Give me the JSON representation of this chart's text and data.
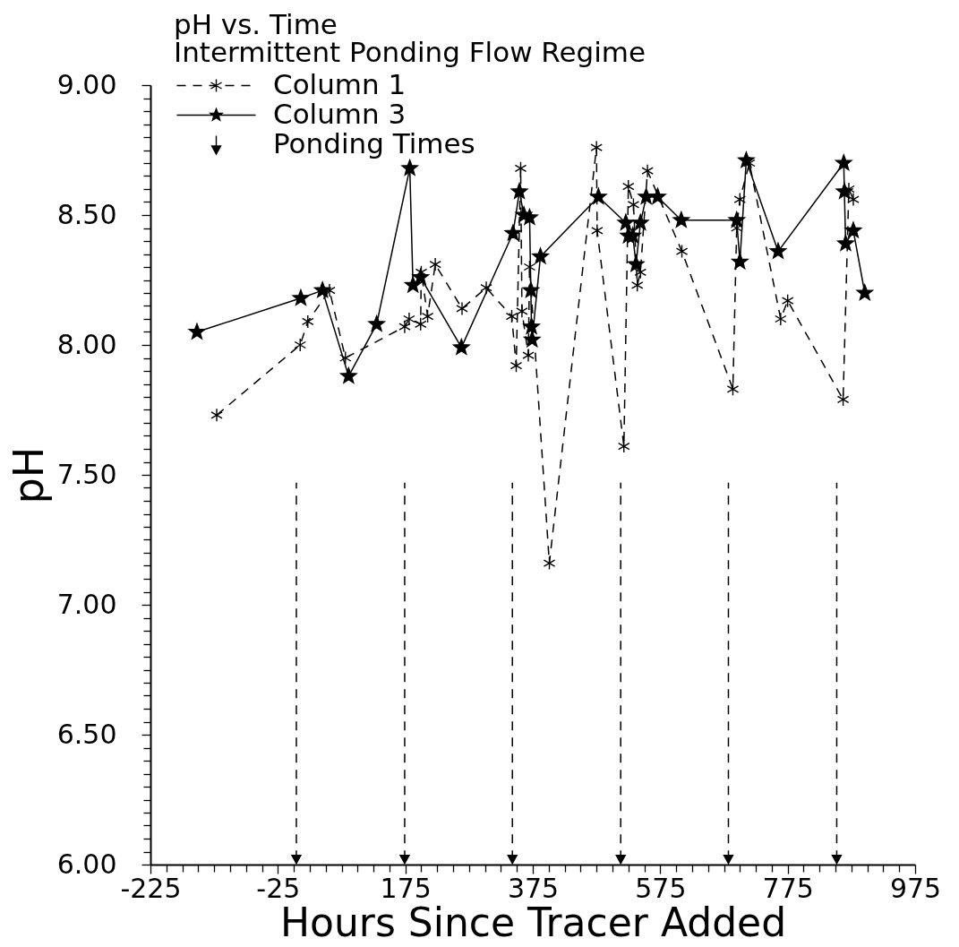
{
  "chart_data": {
    "type": "line",
    "title": "pH vs. Time",
    "subtitle": "Intermittent Ponding Flow Regime",
    "xlabel": "Hours Since Tracer Added",
    "ylabel": "pH",
    "xlim": [
      -225,
      975
    ],
    "ylim": [
      6,
      9
    ],
    "xticks": [
      -225,
      {
        "value": -200,
        "label": null
      },
      {
        "value": -175,
        "label": null
      },
      {
        "value": -150,
        "label": null
      },
      {
        "value": -125,
        "label": null
      },
      {
        "value": -100,
        "label": null
      },
      {
        "value": -75,
        "label": null
      },
      {
        "value": -50,
        "label": null
      },
      -25,
      {
        "value": 0,
        "label": null
      },
      {
        "value": 25,
        "label": null
      },
      {
        "value": 50,
        "label": null
      },
      {
        "value": 75,
        "label": null
      },
      {
        "value": 100,
        "label": null
      },
      {
        "value": 125,
        "label": null
      },
      {
        "value": 150,
        "label": null
      },
      175,
      {
        "value": 200,
        "label": null
      },
      {
        "value": 225,
        "label": null
      },
      {
        "value": 250,
        "label": null
      },
      {
        "value": 275,
        "label": null
      },
      {
        "value": 300,
        "label": null
      },
      {
        "value": 325,
        "label": null
      },
      {
        "value": 350,
        "label": null
      },
      375,
      {
        "value": 400,
        "label": null
      },
      {
        "value": 425,
        "label": null
      },
      {
        "value": 450,
        "label": null
      },
      {
        "value": 475,
        "label": null
      },
      {
        "value": 500,
        "label": null
      },
      {
        "value": 525,
        "label": null
      },
      {
        "value": 550,
        "label": null
      },
      575,
      {
        "value": 600,
        "label": null
      },
      {
        "value": 625,
        "label": null
      },
      {
        "value": 650,
        "label": null
      },
      {
        "value": 675,
        "label": null
      },
      {
        "value": 700,
        "label": null
      },
      {
        "value": 725,
        "label": null
      },
      {
        "value": 750,
        "label": null
      },
      775,
      {
        "value": 800,
        "label": null
      },
      {
        "value": 825,
        "label": null
      },
      {
        "value": 850,
        "label": null
      },
      {
        "value": 875,
        "label": null
      },
      {
        "value": 900,
        "label": null
      },
      {
        "value": 925,
        "label": null
      },
      {
        "value": 950,
        "label": null
      },
      975
    ],
    "yticks": [
      {
        "value": 6,
        "label": "6.00"
      },
      {
        "value": 6.05,
        "label": null
      },
      {
        "value": 6.1,
        "label": null
      },
      {
        "value": 6.15,
        "label": null
      },
      {
        "value": 6.2,
        "label": null
      },
      {
        "value": 6.25,
        "label": null
      },
      {
        "value": 6.3,
        "label": null
      },
      {
        "value": 6.35,
        "label": null
      },
      {
        "value": 6.4,
        "label": null
      },
      {
        "value": 6.45,
        "label": null
      },
      {
        "value": 6.5,
        "label": "6.50"
      },
      {
        "value": 6.55,
        "label": null
      },
      {
        "value": 6.6,
        "label": null
      },
      {
        "value": 6.65,
        "label": null
      },
      {
        "value": 6.7,
        "label": null
      },
      {
        "value": 6.75,
        "label": null
      },
      {
        "value": 6.8,
        "label": null
      },
      {
        "value": 6.85,
        "label": null
      },
      {
        "value": 6.9,
        "label": null
      },
      {
        "value": 6.95,
        "label": null
      },
      {
        "value": 7,
        "label": "7.00"
      },
      {
        "value": 7.05,
        "label": null
      },
      {
        "value": 7.1,
        "label": null
      },
      {
        "value": 7.15,
        "label": null
      },
      {
        "value": 7.2,
        "label": null
      },
      {
        "value": 7.25,
        "label": null
      },
      {
        "value": 7.3,
        "label": null
      },
      {
        "value": 7.35,
        "label": null
      },
      {
        "value": 7.4,
        "label": null
      },
      {
        "value": 7.45,
        "label": null
      },
      {
        "value": 7.5,
        "label": "7.50"
      },
      {
        "value": 7.55,
        "label": null
      },
      {
        "value": 7.6,
        "label": null
      },
      {
        "value": 7.65,
        "label": null
      },
      {
        "value": 7.7,
        "label": null
      },
      {
        "value": 7.75,
        "label": null
      },
      {
        "value": 7.8,
        "label": null
      },
      {
        "value": 7.85,
        "label": null
      },
      {
        "value": 7.9,
        "label": null
      },
      {
        "value": 7.95,
        "label": null
      },
      {
        "value": 8,
        "label": "8.00"
      },
      {
        "value": 8.05,
        "label": null
      },
      {
        "value": 8.1,
        "label": null
      },
      {
        "value": 8.15,
        "label": null
      },
      {
        "value": 8.2,
        "label": null
      },
      {
        "value": 8.25,
        "label": null
      },
      {
        "value": 8.3,
        "label": null
      },
      {
        "value": 8.35,
        "label": null
      },
      {
        "value": 8.4,
        "label": null
      },
      {
        "value": 8.45,
        "label": null
      },
      {
        "value": 8.5,
        "label": "8.50"
      },
      {
        "value": 8.55,
        "label": null
      },
      {
        "value": 8.6,
        "label": null
      },
      {
        "value": 8.65,
        "label": null
      },
      {
        "value": 8.7,
        "label": null
      },
      {
        "value": 8.75,
        "label": null
      },
      {
        "value": 8.8,
        "label": null
      },
      {
        "value": 8.85,
        "label": null
      },
      {
        "value": 8.9,
        "label": null
      },
      {
        "value": 8.95,
        "label": null
      },
      {
        "value": 9,
        "label": "9.00"
      }
    ],
    "legend": "top left",
    "series": [
      {
        "name": "Column 1",
        "color": "#000000",
        "marker": "cross",
        "line_style": "dashed",
        "x": [
          -121,
          10,
          22,
          56,
          81,
          174,
          181,
          199,
          200,
          210,
          222,
          264,
          302,
          342,
          349,
          356,
          358,
          368,
          370,
          401,
          475,
          476,
          518,
          525,
          533,
          539,
          544,
          555,
          609,
          689,
          695,
          700,
          715,
          764,
          775,
          862,
          871,
          878
        ],
        "values": [
          7.73,
          8.0,
          8.09,
          8.21,
          7.95,
          8.07,
          8.1,
          8.08,
          8.28,
          8.11,
          8.31,
          8.14,
          8.22,
          8.11,
          7.92,
          8.68,
          8.13,
          7.96,
          8.3,
          7.16,
          8.76,
          8.44,
          7.61,
          8.61,
          8.54,
          8.23,
          8.28,
          8.67,
          8.36,
          7.83,
          8.45,
          8.56,
          8.7,
          8.1,
          8.17,
          7.79,
          8.6,
          8.56
        ]
      },
      {
        "name": "Column 3",
        "color": "#000000",
        "marker": "star",
        "line_style": "solid",
        "x": [
          -152,
          11,
          45,
          86,
          130,
          182,
          187,
          199,
          263,
          344,
          354,
          361,
          370,
          372,
          373,
          374,
          387,
          478,
          521,
          525,
          532,
          537,
          544,
          553,
          571,
          608,
          695,
          700,
          710,
          760,
          863,
          864,
          866,
          878,
          896
        ],
        "values": [
          8.05,
          8.18,
          8.21,
          7.88,
          8.08,
          8.68,
          8.23,
          8.26,
          7.99,
          8.43,
          8.59,
          8.5,
          8.49,
          8.21,
          8.07,
          8.02,
          8.34,
          8.57,
          8.47,
          8.42,
          8.42,
          8.31,
          8.47,
          8.57,
          8.57,
          8.48,
          8.48,
          8.32,
          8.71,
          8.36,
          8.7,
          8.59,
          8.39,
          8.44,
          8.2
        ]
      },
      {
        "name": "Ponding Times",
        "type": "scatter",
        "color": "#000000",
        "marker": "triangle",
        "line_style": "dashed",
        "x": [
          4,
          174,
          343,
          513,
          682,
          852
        ],
        "values": [
          6.02,
          6.02,
          6.02,
          6.02,
          6.02,
          6.02
        ],
        "errors": [
          [
            6.02,
            7.47
          ],
          [
            6.02,
            7.47
          ],
          [
            6.02,
            7.47
          ],
          [
            6.02,
            7.47
          ],
          [
            6.02,
            7.47
          ],
          [
            6.02,
            7.47
          ]
        ]
      }
    ]
  }
}
